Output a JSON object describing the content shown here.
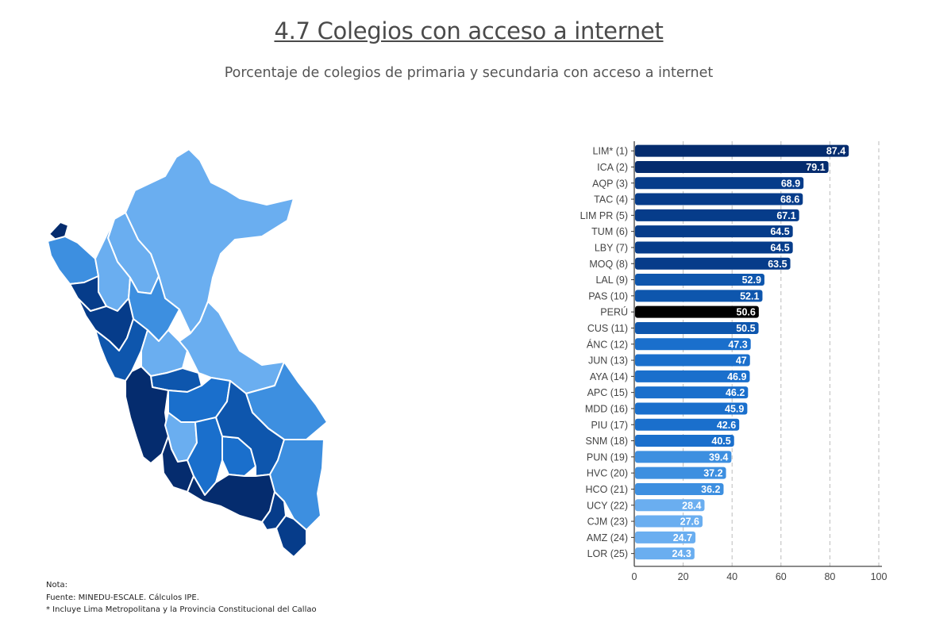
{
  "header": {
    "title": "4.7 Colegios con acceso a internet",
    "subtitle": "Porcentaje de colegios de primaria y secundaria con acceso a internet"
  },
  "notes": [
    "Nota:",
    "Fuente: MINEDU-ESCALE. Cálculos IPE.",
    "* Incluye Lima Metropolitana y la Provincia Constitucional del Callao"
  ],
  "colors": {
    "scale": [
      "#6aaef0",
      "#3d8fe0",
      "#1a6fcc",
      "#0e56ad",
      "#063c8a",
      "#052c6e"
    ],
    "national": "#000000"
  },
  "chart_data": {
    "type": "bar",
    "orientation": "horizontal",
    "categories": [
      "LIM* (1)",
      "ICA (2)",
      "AQP (3)",
      "TAC (4)",
      "LIM PR (5)",
      "TUM (6)",
      "LBY (7)",
      "MOQ (8)",
      "LAL (9)",
      "PAS (10)",
      "PERÚ",
      "CUS (11)",
      "ÁNC (12)",
      "JUN (13)",
      "AYA (14)",
      "APC (15)",
      "MDD (16)",
      "PIU (17)",
      "SNM (18)",
      "PUN (19)",
      "HVC (20)",
      "HCO (21)",
      "UCY (22)",
      "CJM (23)",
      "AMZ (24)",
      "LOR (25)"
    ],
    "values": [
      87.4,
      79.1,
      68.9,
      68.6,
      67.1,
      64.5,
      64.5,
      63.5,
      52.9,
      52.1,
      50.6,
      50.5,
      47.3,
      47,
      46.9,
      46.2,
      45.9,
      42.6,
      40.5,
      39.4,
      37.2,
      36.2,
      28.4,
      27.6,
      24.7,
      24.3
    ],
    "value_labels": [
      "87.4",
      "79.1",
      "68.9",
      "68.6",
      "67.1",
      "64.5",
      "64.5",
      "63.5",
      "52.9",
      "52.1",
      "50.6",
      "50.5",
      "47.3",
      "47",
      "46.9",
      "46.2",
      "45.9",
      "42.6",
      "40.5",
      "39.4",
      "37.2",
      "36.2",
      "28.4",
      "27.6",
      "24.7",
      "24.3"
    ],
    "highlight": "PERÚ",
    "xlim": [
      0,
      100
    ],
    "xticks": [
      "0",
      "20",
      "40",
      "60",
      "80",
      "100"
    ],
    "grid": true
  }
}
